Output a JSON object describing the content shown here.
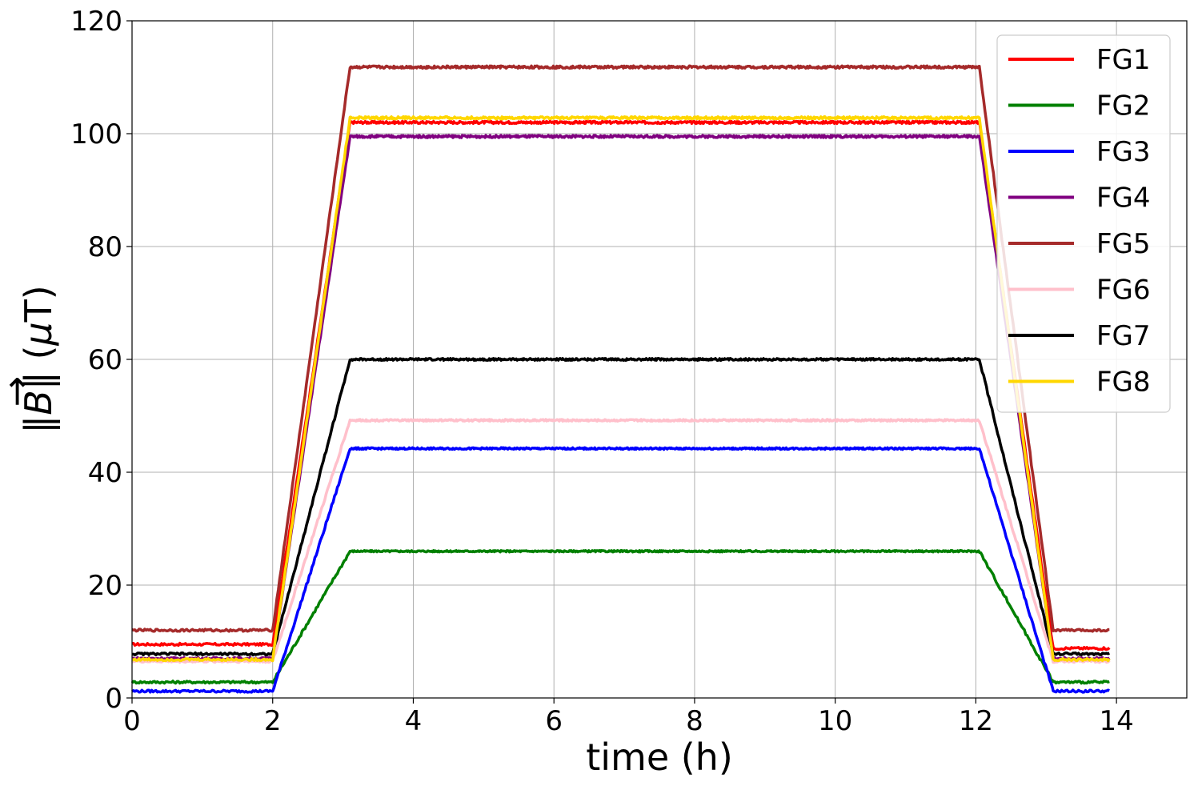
{
  "chart_data": {
    "type": "line",
    "title": "",
    "xlabel": "time (h)",
    "ylabel_parts": {
      "norm_open": "‖",
      "symbol": "B",
      "arrow": "→",
      "norm_close": "‖",
      "unit_open": " (",
      "mu": "μ",
      "unit_close": "T)"
    },
    "xlim": [
      0,
      15
    ],
    "ylim": [
      0,
      120
    ],
    "xticks": [
      0,
      2,
      4,
      6,
      8,
      10,
      12,
      14
    ],
    "yticks": [
      0,
      20,
      40,
      60,
      80,
      100,
      120
    ],
    "grid": true,
    "legend_position": "top-right",
    "profile": {
      "start": 0,
      "ramp_up_start": 2.0,
      "ramp_up_end": 3.1,
      "ramp_down_start": 12.05,
      "ramp_down_end": 13.1,
      "end": 13.9
    },
    "series": [
      {
        "name": "FG1",
        "color": "#ff0000",
        "low_before": 9.5,
        "high": 102,
        "low_after": 8.8
      },
      {
        "name": "FG2",
        "color": "#008000",
        "low_before": 2.8,
        "high": 26,
        "low_after": 2.8
      },
      {
        "name": "FG3",
        "color": "#0000ff",
        "low_before": 1.2,
        "high": 44.2,
        "low_after": 1.2
      },
      {
        "name": "FG4",
        "color": "#800080",
        "low_before": 7.0,
        "high": 99.5,
        "low_after": 7.0
      },
      {
        "name": "FG5",
        "color": "#a52a2a",
        "low_before": 12.0,
        "high": 111.8,
        "low_after": 12.0
      },
      {
        "name": "FG6",
        "color": "#ffc0cb",
        "low_before": 6.5,
        "high": 49.2,
        "low_after": 6.5
      },
      {
        "name": "FG7",
        "color": "#000000",
        "low_before": 7.8,
        "high": 60,
        "low_after": 7.8
      },
      {
        "name": "FG8",
        "color": "#ffd700",
        "low_before": 6.8,
        "high": 102.8,
        "low_after": 6.8
      }
    ]
  }
}
